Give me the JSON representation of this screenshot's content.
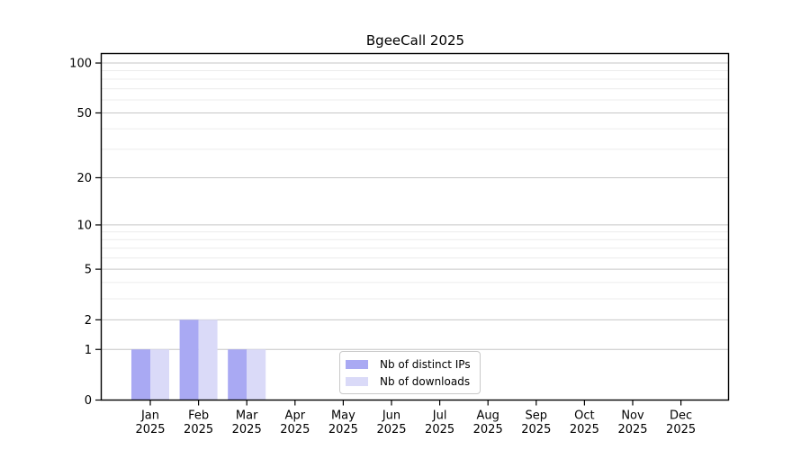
{
  "chart_data": {
    "type": "bar",
    "title": "BgeeCall 2025",
    "xlabel": "",
    "ylabel": "",
    "categories": [
      "Jan 2025",
      "Feb 2025",
      "Mar 2025",
      "Apr 2025",
      "May 2025",
      "Jun 2025",
      "Jul 2025",
      "Aug 2025",
      "Sep 2025",
      "Oct 2025",
      "Nov 2025",
      "Dec 2025"
    ],
    "series": [
      {
        "name": "Nb of distinct IPs",
        "color": "#a9a9f3",
        "values": [
          1,
          2,
          1,
          0,
          0,
          0,
          0,
          0,
          0,
          0,
          0,
          0
        ]
      },
      {
        "name": "Nb of downloads",
        "color": "#dadaf8",
        "values": [
          1,
          2,
          1,
          0,
          0,
          0,
          0,
          0,
          0,
          0,
          0,
          0
        ]
      }
    ],
    "y_axis": {
      "scale": "symlog",
      "major_ticks": [
        0,
        1,
        2,
        5,
        10,
        20,
        50,
        100
      ],
      "minor_ticks": [
        3,
        4,
        6,
        7,
        8,
        9,
        30,
        40,
        60,
        70,
        80,
        90
      ],
      "ylim": [
        0,
        114
      ]
    },
    "grid": "horizontal",
    "legend_position": "lower center",
    "colors": {
      "grid_major": "#c6c6c6",
      "grid_minor": "#ececec",
      "axis": "#000000",
      "text": "#000000",
      "background": "#ffffff"
    }
  }
}
